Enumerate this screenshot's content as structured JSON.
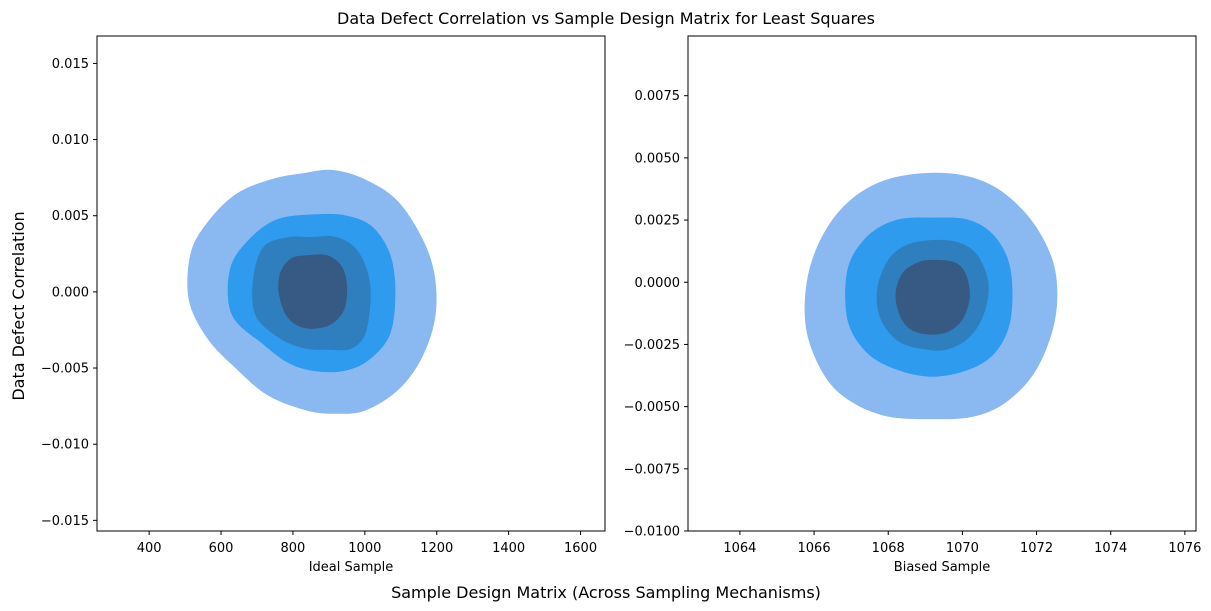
{
  "figure": {
    "title": "Data Defect Correlation vs Sample Design Matrix for Least Squares",
    "supxlabel": "Sample Design Matrix (Across Sampling Mechanisms)",
    "supylabel": "Data Defect Correlation"
  },
  "chart_data": [
    {
      "type": "kde-contour",
      "xlabel": "Ideal Sample",
      "ylabel": "",
      "xlim": [
        255,
        1668
      ],
      "ylim": [
        -0.0157,
        0.0168
      ],
      "xticks": [
        {
          "value": 400,
          "label": "400"
        },
        {
          "value": 600,
          "label": "600"
        },
        {
          "value": 800,
          "label": "800"
        },
        {
          "value": 1000,
          "label": "1000"
        },
        {
          "value": 1200,
          "label": "1200"
        },
        {
          "value": 1400,
          "label": "1400"
        },
        {
          "value": 1600,
          "label": "1600"
        }
      ],
      "yticks": [
        {
          "value": -0.015,
          "label": "−0.015"
        },
        {
          "value": -0.01,
          "label": "−0.010"
        },
        {
          "value": -0.005,
          "label": "−0.005"
        },
        {
          "value": 0.0,
          "label": "0.000"
        },
        {
          "value": 0.005,
          "label": "0.005"
        },
        {
          "value": 0.01,
          "label": "0.010"
        },
        {
          "value": 0.015,
          "label": "0.015"
        }
      ],
      "levels": [
        {
          "color": "#8ab9f2",
          "polygon": [
            [
              910,
              0.008
            ],
            [
              1000,
              0.0074
            ],
            [
              1090,
              0.006
            ],
            [
              1160,
              0.0035
            ],
            [
              1195,
              0.001
            ],
            [
              1195,
              -0.0018
            ],
            [
              1155,
              -0.0045
            ],
            [
              1090,
              -0.0065
            ],
            [
              1000,
              -0.0078
            ],
            [
              920,
              -0.008
            ],
            [
              840,
              -0.0078
            ],
            [
              730,
              -0.0068
            ],
            [
              640,
              -0.005
            ],
            [
              560,
              -0.003
            ],
            [
              510,
              -0.0005
            ],
            [
              515,
              0.0025
            ],
            [
              560,
              0.0045
            ],
            [
              640,
              0.0064
            ],
            [
              740,
              0.0074
            ],
            [
              830,
              0.0078
            ]
          ]
        },
        {
          "color": "#2e9bef",
          "polygon": [
            [
              870,
              0.0051
            ],
            [
              950,
              0.005
            ],
            [
              1020,
              0.0043
            ],
            [
              1070,
              0.0025
            ],
            [
              1085,
              0.0
            ],
            [
              1070,
              -0.0028
            ],
            [
              1010,
              -0.0045
            ],
            [
              940,
              -0.0052
            ],
            [
              860,
              -0.0052
            ],
            [
              790,
              -0.0047
            ],
            [
              720,
              -0.0035
            ],
            [
              630,
              -0.0015
            ],
            [
              625,
              0.0015
            ],
            [
              680,
              0.0035
            ],
            [
              760,
              0.0048
            ]
          ]
        },
        {
          "color": "#2f7fbf",
          "polygon": [
            [
              850,
              0.0036
            ],
            [
              920,
              0.0036
            ],
            [
              980,
              0.0027
            ],
            [
              1015,
              0.0005
            ],
            [
              1005,
              -0.0025
            ],
            [
              965,
              -0.0037
            ],
            [
              900,
              -0.0038
            ],
            [
              830,
              -0.0037
            ],
            [
              760,
              -0.003
            ],
            [
              695,
              -0.0015
            ],
            [
              690,
              0.001
            ],
            [
              720,
              0.003
            ],
            [
              790,
              0.0036
            ]
          ]
        },
        {
          "color": "#375a84",
          "polygon": [
            [
              840,
              0.0024
            ],
            [
              895,
              0.0024
            ],
            [
              935,
              0.0017
            ],
            [
              950,
              0.0005
            ],
            [
              945,
              -0.001
            ],
            [
              915,
              -0.002
            ],
            [
              870,
              -0.0024
            ],
            [
              820,
              -0.0023
            ],
            [
              780,
              -0.0015
            ],
            [
              760,
              0.0
            ],
            [
              765,
              0.0013
            ],
            [
              795,
              0.0022
            ]
          ]
        }
      ]
    },
    {
      "type": "kde-contour",
      "xlabel": "Biased Sample",
      "ylabel": "",
      "xlim": [
        1062.6,
        1076.3
      ],
      "ylim": [
        -0.01,
        0.0099
      ],
      "xticks": [
        {
          "value": 1064,
          "label": "1064"
        },
        {
          "value": 1066,
          "label": "1066"
        },
        {
          "value": 1068,
          "label": "1068"
        },
        {
          "value": 1070,
          "label": "1070"
        },
        {
          "value": 1072,
          "label": "1072"
        },
        {
          "value": 1074,
          "label": "1074"
        },
        {
          "value": 1076,
          "label": "1076"
        }
      ],
      "yticks": [
        {
          "value": -0.01,
          "label": "−0.0100"
        },
        {
          "value": -0.0075,
          "label": "−0.0075"
        },
        {
          "value": -0.005,
          "label": "−0.0050"
        },
        {
          "value": -0.0025,
          "label": "−0.0025"
        },
        {
          "value": 0.0,
          "label": "0.0000"
        },
        {
          "value": 0.0025,
          "label": "0.0025"
        },
        {
          "value": 0.005,
          "label": "0.0050"
        },
        {
          "value": 0.0075,
          "label": "0.0075"
        }
      ],
      "levels": [
        {
          "color": "#8ab9f2",
          "polygon": [
            [
              1069.2,
              0.0044
            ],
            [
              1070.3,
              0.0042
            ],
            [
              1071.2,
              0.0035
            ],
            [
              1072.0,
              0.0022
            ],
            [
              1072.5,
              0.0005
            ],
            [
              1072.5,
              -0.0015
            ],
            [
              1072.0,
              -0.0035
            ],
            [
              1071.2,
              -0.0048
            ],
            [
              1070.3,
              -0.0054
            ],
            [
              1069.2,
              -0.0055
            ],
            [
              1068.0,
              -0.0054
            ],
            [
              1067.0,
              -0.0048
            ],
            [
              1066.3,
              -0.0038
            ],
            [
              1065.8,
              -0.002
            ],
            [
              1065.8,
              0.0
            ],
            [
              1066.2,
              0.0018
            ],
            [
              1066.9,
              0.0032
            ],
            [
              1067.9,
              0.0041
            ]
          ]
        },
        {
          "color": "#2e9bef",
          "polygon": [
            [
              1069.2,
              0.0026
            ],
            [
              1070.2,
              0.0025
            ],
            [
              1070.9,
              0.0018
            ],
            [
              1071.3,
              0.0005
            ],
            [
              1071.3,
              -0.0015
            ],
            [
              1070.9,
              -0.0028
            ],
            [
              1070.2,
              -0.0035
            ],
            [
              1069.2,
              -0.0038
            ],
            [
              1068.2,
              -0.0035
            ],
            [
              1067.4,
              -0.0028
            ],
            [
              1066.9,
              -0.0015
            ],
            [
              1066.9,
              0.0005
            ],
            [
              1067.4,
              0.0018
            ],
            [
              1068.2,
              0.0025
            ]
          ]
        },
        {
          "color": "#2f7fbf",
          "polygon": [
            [
              1069.2,
              0.0017
            ],
            [
              1069.9,
              0.0016
            ],
            [
              1070.4,
              0.0011
            ],
            [
              1070.7,
              0.0
            ],
            [
              1070.6,
              -0.0012
            ],
            [
              1070.2,
              -0.0022
            ],
            [
              1069.6,
              -0.0027
            ],
            [
              1069.0,
              -0.0027
            ],
            [
              1068.3,
              -0.0024
            ],
            [
              1067.8,
              -0.0015
            ],
            [
              1067.7,
              -0.0003
            ],
            [
              1068.0,
              0.0009
            ],
            [
              1068.5,
              0.0015
            ]
          ]
        },
        {
          "color": "#375a84",
          "polygon": [
            [
              1069.2,
              0.0009
            ],
            [
              1069.8,
              0.0008
            ],
            [
              1070.1,
              0.0003
            ],
            [
              1070.2,
              -0.0006
            ],
            [
              1070.0,
              -0.0015
            ],
            [
              1069.6,
              -0.002
            ],
            [
              1069.1,
              -0.0021
            ],
            [
              1068.6,
              -0.0019
            ],
            [
              1068.3,
              -0.0013
            ],
            [
              1068.2,
              -0.0004
            ],
            [
              1068.4,
              0.0004
            ],
            [
              1068.8,
              0.0008
            ]
          ]
        }
      ]
    }
  ]
}
